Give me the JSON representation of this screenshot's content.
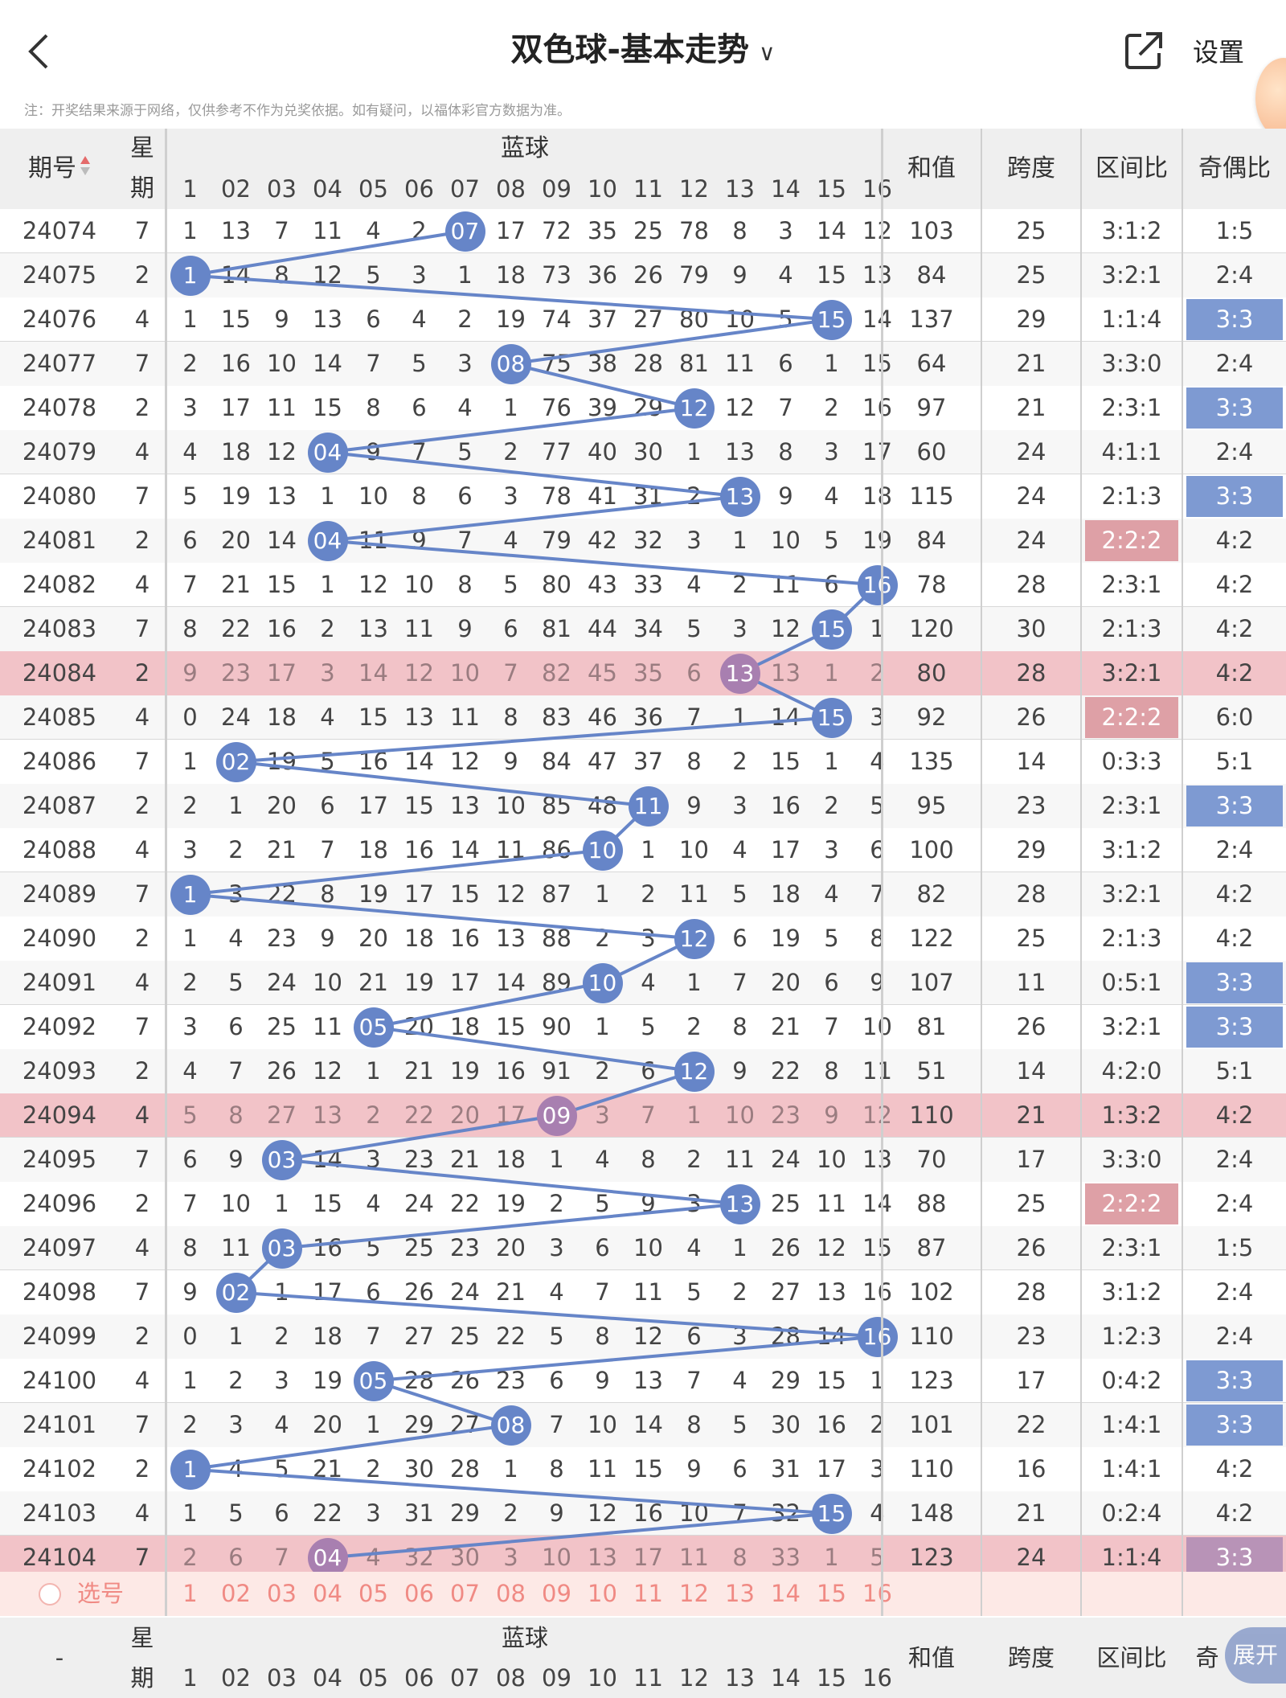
{
  "header": {
    "back_icon": "chevron-left-icon",
    "title": "双色球-基本走势",
    "title_chevron": "∨",
    "share_icon": "share-external-icon",
    "settings_label": "设置"
  },
  "notice": "注：开奖结果来源于网络，仅供参考不作为兑奖依据。如有疑问，以福体彩官方数据为准。",
  "columns": {
    "issue": "期号",
    "week_top": "星",
    "week_bottom": "期",
    "blue_group": "蓝球",
    "blue_numbers": [
      "1",
      "02",
      "03",
      "04",
      "05",
      "06",
      "07",
      "08",
      "09",
      "10",
      "11",
      "12",
      "13",
      "14",
      "15",
      "16"
    ],
    "sum": "和值",
    "span": "跨度",
    "zone_ratio": "区间比",
    "odd_even": "奇偶比",
    "odd_even_short": "奇"
  },
  "colors": {
    "ball": "#6685c8",
    "ball_dim": "#a87fb0",
    "highlight_row": "#f2c3c8",
    "odd_even_tag": "#7e9ad2",
    "zone_tag": "#dea0a6"
  },
  "rows": [
    {
      "issue": "24074",
      "week": "7",
      "cells": [
        "1",
        "13",
        "7",
        "11",
        "4",
        "2",
        "07",
        "17",
        "72",
        "35",
        "25",
        "78",
        "8",
        "3",
        "14",
        "12"
      ],
      "blue": 7,
      "sum": "103",
      "span": "25",
      "zone": "3:1:2",
      "oe": "1:5",
      "hl": false,
      "zone_tag": "",
      "oe_tag": ""
    },
    {
      "issue": "24075",
      "week": "2",
      "cells": [
        "1",
        "14",
        "8",
        "12",
        "5",
        "3",
        "1",
        "18",
        "73",
        "36",
        "26",
        "79",
        "9",
        "4",
        "15",
        "13"
      ],
      "blue": 1,
      "sum": "84",
      "span": "25",
      "zone": "3:2:1",
      "oe": "2:4",
      "hl": false,
      "zone_tag": "",
      "oe_tag": ""
    },
    {
      "issue": "24076",
      "week": "4",
      "cells": [
        "1",
        "15",
        "9",
        "13",
        "6",
        "4",
        "2",
        "19",
        "74",
        "37",
        "27",
        "80",
        "10",
        "5",
        "15",
        "14"
      ],
      "blue": 15,
      "sum": "137",
      "span": "29",
      "zone": "1:1:4",
      "oe": "3:3",
      "hl": false,
      "zone_tag": "",
      "oe_tag": "blue"
    },
    {
      "issue": "24077",
      "week": "7",
      "cells": [
        "2",
        "16",
        "10",
        "14",
        "7",
        "5",
        "3",
        "08",
        "75",
        "38",
        "28",
        "81",
        "11",
        "6",
        "1",
        "15"
      ],
      "blue": 8,
      "sum": "64",
      "span": "21",
      "zone": "3:3:0",
      "oe": "2:4",
      "hl": false,
      "zone_tag": "",
      "oe_tag": ""
    },
    {
      "issue": "24078",
      "week": "2",
      "cells": [
        "3",
        "17",
        "11",
        "15",
        "8",
        "6",
        "4",
        "1",
        "76",
        "39",
        "29",
        "12",
        "12",
        "7",
        "2",
        "16"
      ],
      "blue": 12,
      "sum": "97",
      "span": "21",
      "zone": "2:3:1",
      "oe": "3:3",
      "hl": false,
      "zone_tag": "",
      "oe_tag": "blue"
    },
    {
      "issue": "24079",
      "week": "4",
      "cells": [
        "4",
        "18",
        "12",
        "04",
        "9",
        "7",
        "5",
        "2",
        "77",
        "40",
        "30",
        "1",
        "13",
        "8",
        "3",
        "17"
      ],
      "blue": 4,
      "sum": "60",
      "span": "24",
      "zone": "4:1:1",
      "oe": "2:4",
      "hl": false,
      "zone_tag": "",
      "oe_tag": ""
    },
    {
      "issue": "24080",
      "week": "7",
      "cells": [
        "5",
        "19",
        "13",
        "1",
        "10",
        "8",
        "6",
        "3",
        "78",
        "41",
        "31",
        "2",
        "13",
        "9",
        "4",
        "18"
      ],
      "blue": 13,
      "sum": "115",
      "span": "24",
      "zone": "2:1:3",
      "oe": "3:3",
      "hl": false,
      "zone_tag": "",
      "oe_tag": "blue"
    },
    {
      "issue": "24081",
      "week": "2",
      "cells": [
        "6",
        "20",
        "14",
        "04",
        "11",
        "9",
        "7",
        "4",
        "79",
        "42",
        "32",
        "3",
        "1",
        "10",
        "5",
        "19"
      ],
      "blue": 4,
      "sum": "84",
      "span": "24",
      "zone": "2:2:2",
      "oe": "4:2",
      "hl": false,
      "zone_tag": "pink",
      "oe_tag": ""
    },
    {
      "issue": "24082",
      "week": "4",
      "cells": [
        "7",
        "21",
        "15",
        "1",
        "12",
        "10",
        "8",
        "5",
        "80",
        "43",
        "33",
        "4",
        "2",
        "11",
        "6",
        "16"
      ],
      "blue": 16,
      "sum": "78",
      "span": "28",
      "zone": "2:3:1",
      "oe": "4:2",
      "hl": false,
      "zone_tag": "",
      "oe_tag": ""
    },
    {
      "issue": "24083",
      "week": "7",
      "cells": [
        "8",
        "22",
        "16",
        "2",
        "13",
        "11",
        "9",
        "6",
        "81",
        "44",
        "34",
        "5",
        "3",
        "12",
        "15",
        "1"
      ],
      "blue": 15,
      "sum": "120",
      "span": "30",
      "zone": "2:1:3",
      "oe": "4:2",
      "hl": false,
      "zone_tag": "",
      "oe_tag": ""
    },
    {
      "issue": "24084",
      "week": "2",
      "cells": [
        "9",
        "23",
        "17",
        "3",
        "14",
        "12",
        "10",
        "7",
        "82",
        "45",
        "35",
        "6",
        "13",
        "13",
        "1",
        "2"
      ],
      "blue": 13,
      "sum": "80",
      "span": "28",
      "zone": "3:2:1",
      "oe": "4:2",
      "hl": true,
      "zone_tag": "",
      "oe_tag": ""
    },
    {
      "issue": "24085",
      "week": "4",
      "cells": [
        "0",
        "24",
        "18",
        "4",
        "15",
        "13",
        "11",
        "8",
        "83",
        "46",
        "36",
        "7",
        "1",
        "14",
        "15",
        "3"
      ],
      "blue": 15,
      "sum": "92",
      "span": "26",
      "zone": "2:2:2",
      "oe": "6:0",
      "hl": false,
      "zone_tag": "pink",
      "oe_tag": ""
    },
    {
      "issue": "24086",
      "week": "7",
      "cells": [
        "1",
        "02",
        "19",
        "5",
        "16",
        "14",
        "12",
        "9",
        "84",
        "47",
        "37",
        "8",
        "2",
        "15",
        "1",
        "4"
      ],
      "blue": 2,
      "sum": "135",
      "span": "14",
      "zone": "0:3:3",
      "oe": "5:1",
      "hl": false,
      "zone_tag": "",
      "oe_tag": ""
    },
    {
      "issue": "24087",
      "week": "2",
      "cells": [
        "2",
        "1",
        "20",
        "6",
        "17",
        "15",
        "13",
        "10",
        "85",
        "48",
        "11",
        "9",
        "3",
        "16",
        "2",
        "5"
      ],
      "blue": 11,
      "sum": "95",
      "span": "23",
      "zone": "2:3:1",
      "oe": "3:3",
      "hl": false,
      "zone_tag": "",
      "oe_tag": "blue"
    },
    {
      "issue": "24088",
      "week": "4",
      "cells": [
        "3",
        "2",
        "21",
        "7",
        "18",
        "16",
        "14",
        "11",
        "86",
        "10",
        "1",
        "10",
        "4",
        "17",
        "3",
        "6"
      ],
      "blue": 10,
      "sum": "100",
      "span": "29",
      "zone": "3:1:2",
      "oe": "2:4",
      "hl": false,
      "zone_tag": "",
      "oe_tag": ""
    },
    {
      "issue": "24089",
      "week": "7",
      "cells": [
        "1",
        "3",
        "22",
        "8",
        "19",
        "17",
        "15",
        "12",
        "87",
        "1",
        "2",
        "11",
        "5",
        "18",
        "4",
        "7"
      ],
      "blue": 1,
      "sum": "82",
      "span": "28",
      "zone": "3:2:1",
      "oe": "4:2",
      "hl": false,
      "zone_tag": "",
      "oe_tag": ""
    },
    {
      "issue": "24090",
      "week": "2",
      "cells": [
        "1",
        "4",
        "23",
        "9",
        "20",
        "18",
        "16",
        "13",
        "88",
        "2",
        "3",
        "12",
        "6",
        "19",
        "5",
        "8"
      ],
      "blue": 12,
      "sum": "122",
      "span": "25",
      "zone": "2:1:3",
      "oe": "4:2",
      "hl": false,
      "zone_tag": "",
      "oe_tag": ""
    },
    {
      "issue": "24091",
      "week": "4",
      "cells": [
        "2",
        "5",
        "24",
        "10",
        "21",
        "19",
        "17",
        "14",
        "89",
        "10",
        "4",
        "1",
        "7",
        "20",
        "6",
        "9"
      ],
      "blue": 10,
      "sum": "107",
      "span": "11",
      "zone": "0:5:1",
      "oe": "3:3",
      "hl": false,
      "zone_tag": "",
      "oe_tag": "blue"
    },
    {
      "issue": "24092",
      "week": "7",
      "cells": [
        "3",
        "6",
        "25",
        "11",
        "05",
        "20",
        "18",
        "15",
        "90",
        "1",
        "5",
        "2",
        "8",
        "21",
        "7",
        "10"
      ],
      "blue": 5,
      "sum": "81",
      "span": "26",
      "zone": "3:2:1",
      "oe": "3:3",
      "hl": false,
      "zone_tag": "",
      "oe_tag": "blue"
    },
    {
      "issue": "24093",
      "week": "2",
      "cells": [
        "4",
        "7",
        "26",
        "12",
        "1",
        "21",
        "19",
        "16",
        "91",
        "2",
        "6",
        "12",
        "9",
        "22",
        "8",
        "11"
      ],
      "blue": 12,
      "sum": "51",
      "span": "14",
      "zone": "4:2:0",
      "oe": "5:1",
      "hl": false,
      "zone_tag": "",
      "oe_tag": ""
    },
    {
      "issue": "24094",
      "week": "4",
      "cells": [
        "5",
        "8",
        "27",
        "13",
        "2",
        "22",
        "20",
        "17",
        "09",
        "3",
        "7",
        "1",
        "10",
        "23",
        "9",
        "12"
      ],
      "blue": 9,
      "sum": "110",
      "span": "21",
      "zone": "1:3:2",
      "oe": "4:2",
      "hl": true,
      "zone_tag": "",
      "oe_tag": ""
    },
    {
      "issue": "24095",
      "week": "7",
      "cells": [
        "6",
        "9",
        "03",
        "14",
        "3",
        "23",
        "21",
        "18",
        "1",
        "4",
        "8",
        "2",
        "11",
        "24",
        "10",
        "13"
      ],
      "blue": 3,
      "sum": "70",
      "span": "17",
      "zone": "3:3:0",
      "oe": "2:4",
      "hl": false,
      "zone_tag": "",
      "oe_tag": ""
    },
    {
      "issue": "24096",
      "week": "2",
      "cells": [
        "7",
        "10",
        "1",
        "15",
        "4",
        "24",
        "22",
        "19",
        "2",
        "5",
        "9",
        "3",
        "13",
        "25",
        "11",
        "14"
      ],
      "blue": 13,
      "sum": "88",
      "span": "25",
      "zone": "2:2:2",
      "oe": "2:4",
      "hl": false,
      "zone_tag": "pink",
      "oe_tag": ""
    },
    {
      "issue": "24097",
      "week": "4",
      "cells": [
        "8",
        "11",
        "03",
        "16",
        "5",
        "25",
        "23",
        "20",
        "3",
        "6",
        "10",
        "4",
        "1",
        "26",
        "12",
        "15"
      ],
      "blue": 3,
      "sum": "87",
      "span": "26",
      "zone": "2:3:1",
      "oe": "1:5",
      "hl": false,
      "zone_tag": "",
      "oe_tag": ""
    },
    {
      "issue": "24098",
      "week": "7",
      "cells": [
        "9",
        "02",
        "1",
        "17",
        "6",
        "26",
        "24",
        "21",
        "4",
        "7",
        "11",
        "5",
        "2",
        "27",
        "13",
        "16"
      ],
      "blue": 2,
      "sum": "102",
      "span": "28",
      "zone": "3:1:2",
      "oe": "2:4",
      "hl": false,
      "zone_tag": "",
      "oe_tag": ""
    },
    {
      "issue": "24099",
      "week": "2",
      "cells": [
        "0",
        "1",
        "2",
        "18",
        "7",
        "27",
        "25",
        "22",
        "5",
        "8",
        "12",
        "6",
        "3",
        "28",
        "14",
        "16"
      ],
      "blue": 16,
      "sum": "110",
      "span": "23",
      "zone": "1:2:3",
      "oe": "2:4",
      "hl": false,
      "zone_tag": "",
      "oe_tag": ""
    },
    {
      "issue": "24100",
      "week": "4",
      "cells": [
        "1",
        "2",
        "3",
        "19",
        "05",
        "28",
        "26",
        "23",
        "6",
        "9",
        "13",
        "7",
        "4",
        "29",
        "15",
        "1"
      ],
      "blue": 5,
      "sum": "123",
      "span": "17",
      "zone": "0:4:2",
      "oe": "3:3",
      "hl": false,
      "zone_tag": "",
      "oe_tag": "blue"
    },
    {
      "issue": "24101",
      "week": "7",
      "cells": [
        "2",
        "3",
        "4",
        "20",
        "1",
        "29",
        "27",
        "08",
        "7",
        "10",
        "14",
        "8",
        "5",
        "30",
        "16",
        "2"
      ],
      "blue": 8,
      "sum": "101",
      "span": "22",
      "zone": "1:4:1",
      "oe": "3:3",
      "hl": false,
      "zone_tag": "",
      "oe_tag": "blue"
    },
    {
      "issue": "24102",
      "week": "2",
      "cells": [
        "1",
        "4",
        "5",
        "21",
        "2",
        "30",
        "28",
        "1",
        "8",
        "11",
        "15",
        "9",
        "6",
        "31",
        "17",
        "3"
      ],
      "blue": 1,
      "sum": "110",
      "span": "16",
      "zone": "1:4:1",
      "oe": "4:2",
      "hl": false,
      "zone_tag": "",
      "oe_tag": ""
    },
    {
      "issue": "24103",
      "week": "4",
      "cells": [
        "1",
        "5",
        "6",
        "22",
        "3",
        "31",
        "29",
        "2",
        "9",
        "12",
        "16",
        "10",
        "7",
        "32",
        "15",
        "4"
      ],
      "blue": 15,
      "sum": "148",
      "span": "21",
      "zone": "0:2:4",
      "oe": "4:2",
      "hl": false,
      "zone_tag": "",
      "oe_tag": ""
    },
    {
      "issue": "24104",
      "week": "7",
      "cells": [
        "2",
        "6",
        "7",
        "04",
        "4",
        "32",
        "30",
        "3",
        "10",
        "13",
        "17",
        "11",
        "8",
        "33",
        "1",
        "5"
      ],
      "blue": 4,
      "sum": "123",
      "span": "24",
      "zone": "1:1:4",
      "oe": "3:3",
      "hl": true,
      "zone_tag": "",
      "oe_tag": "purp"
    }
  ],
  "pick_row": {
    "radio_icon": "radio-circle-icon",
    "label": "选号",
    "numbers": [
      "1",
      "02",
      "03",
      "04",
      "05",
      "06",
      "07",
      "08",
      "09",
      "10",
      "11",
      "12",
      "13",
      "14",
      "15",
      "16"
    ]
  },
  "footer": {
    "issue": "-",
    "expand_label": "展开"
  }
}
